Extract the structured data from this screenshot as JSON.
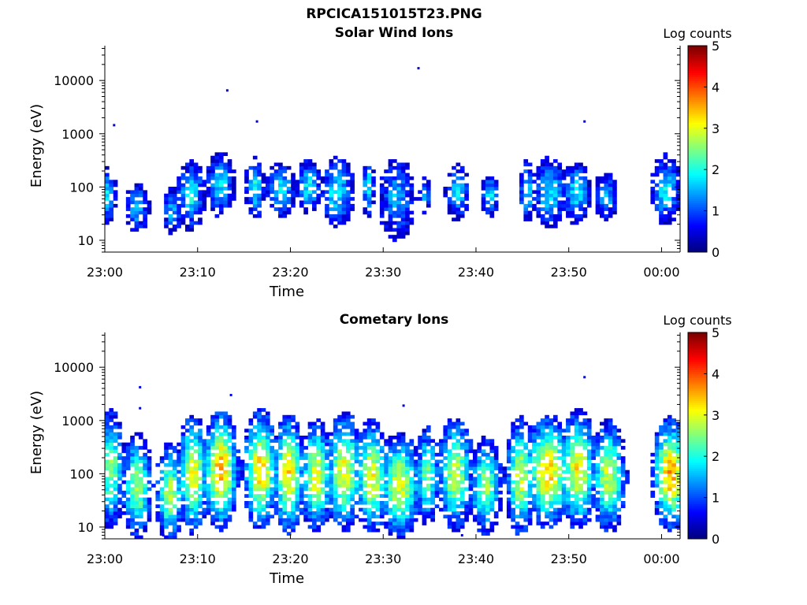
{
  "figure": {
    "title": "RPCICA151015T23.PNG"
  },
  "chart_data": [
    {
      "type": "heatmap",
      "title": "Solar Wind Ions",
      "xlabel": "Time",
      "ylabel": "Energy (eV)",
      "x_ticks": [
        "23:00",
        "23:10",
        "23:20",
        "23:30",
        "23:40",
        "23:50",
        "00:00"
      ],
      "xlim": [
        "23:00",
        "00:02"
      ],
      "y_scale": "log",
      "y_ticks": [
        10,
        100,
        1000,
        10000
      ],
      "ylim": [
        6,
        45000
      ],
      "colorbar": {
        "label": "Log counts",
        "range": [
          0,
          5
        ],
        "ticks": [
          0,
          1,
          2,
          3,
          4,
          5
        ],
        "colormap": "jet"
      },
      "bursts": [
        {
          "t": 0.2,
          "w": 0.8,
          "e": 70,
          "l": 1.8,
          "s": 0.4
        },
        {
          "t": 3.5,
          "w": 1.0,
          "e": 40,
          "l": 1.6,
          "s": 0.35
        },
        {
          "t": 7.3,
          "w": 0.8,
          "e": 35,
          "l": 1.5,
          "s": 0.35
        },
        {
          "t": 9.3,
          "w": 1.2,
          "e": 70,
          "l": 1.9,
          "s": 0.5
        },
        {
          "t": 12.5,
          "w": 1.3,
          "e": 110,
          "l": 1.7,
          "s": 0.45
        },
        {
          "t": 16.2,
          "w": 0.8,
          "e": 100,
          "l": 1.9,
          "s": 0.45
        },
        {
          "t": 19.0,
          "w": 1.2,
          "e": 90,
          "l": 1.8,
          "s": 0.4
        },
        {
          "t": 22.0,
          "w": 1.0,
          "e": 100,
          "l": 1.9,
          "s": 0.4
        },
        {
          "t": 25.0,
          "w": 1.5,
          "e": 80,
          "l": 1.8,
          "s": 0.5
        },
        {
          "t": 28.4,
          "w": 0.5,
          "e": 100,
          "l": 1.9,
          "s": 0.45
        },
        {
          "t": 31.5,
          "w": 1.5,
          "e": 60,
          "l": 1.5,
          "s": 0.6
        },
        {
          "t": 34.5,
          "w": 0.5,
          "e": 70,
          "l": 1.5,
          "s": 0.25
        },
        {
          "t": 38.0,
          "w": 1.0,
          "e": 80,
          "l": 1.7,
          "s": 0.4
        },
        {
          "t": 41.5,
          "w": 0.8,
          "e": 70,
          "l": 1.8,
          "s": 0.3
        },
        {
          "t": 45.5,
          "w": 0.7,
          "e": 80,
          "l": 1.7,
          "s": 0.45
        },
        {
          "t": 48.0,
          "w": 1.4,
          "e": 80,
          "l": 1.8,
          "s": 0.5
        },
        {
          "t": 50.8,
          "w": 1.2,
          "e": 80,
          "l": 1.8,
          "s": 0.45
        },
        {
          "t": 54.0,
          "w": 1.0,
          "e": 70,
          "l": 1.6,
          "s": 0.35
        },
        {
          "t": 60.5,
          "w": 1.3,
          "e": 90,
          "l": 1.8,
          "s": 0.5
        }
      ],
      "outliers": [
        {
          "t": 13.2,
          "e": 6500
        },
        {
          "t": 16.4,
          "e": 1700
        },
        {
          "t": 33.8,
          "e": 17000
        },
        {
          "t": 51.7,
          "e": 1700
        },
        {
          "t": 1.0,
          "e": 1450
        }
      ]
    },
    {
      "type": "heatmap",
      "title": "Cometary Ions",
      "xlabel": "Time",
      "ylabel": "Energy (eV)",
      "x_ticks": [
        "23:00",
        "23:10",
        "23:20",
        "23:30",
        "23:40",
        "23:50",
        "00:00"
      ],
      "xlim": [
        "23:00",
        "00:02"
      ],
      "y_scale": "log",
      "y_ticks": [
        10,
        100,
        1000,
        10000
      ],
      "ylim": [
        6,
        45000
      ],
      "colorbar": {
        "label": "Log counts",
        "range": [
          0,
          5
        ],
        "ticks": [
          0,
          1,
          2,
          3,
          4,
          5
        ],
        "colormap": "jet"
      },
      "bursts": [
        {
          "t": 0.6,
          "w": 1.2,
          "e": 120,
          "l": 2.6,
          "s": 0.85
        },
        {
          "t": 3.5,
          "w": 1.3,
          "e": 60,
          "l": 2.7,
          "s": 0.75
        },
        {
          "t": 7.0,
          "w": 1.2,
          "e": 45,
          "l": 2.8,
          "s": 0.7
        },
        {
          "t": 9.5,
          "w": 1.3,
          "e": 100,
          "l": 3.2,
          "s": 0.85
        },
        {
          "t": 12.5,
          "w": 1.5,
          "e": 120,
          "l": 3.6,
          "s": 0.85
        },
        {
          "t": 16.8,
          "w": 1.5,
          "e": 120,
          "l": 3.4,
          "s": 0.85
        },
        {
          "t": 19.8,
          "w": 1.4,
          "e": 100,
          "l": 3.3,
          "s": 0.85
        },
        {
          "t": 22.8,
          "w": 1.4,
          "e": 90,
          "l": 3.1,
          "s": 0.8
        },
        {
          "t": 25.8,
          "w": 1.6,
          "e": 110,
          "l": 3.1,
          "s": 0.85
        },
        {
          "t": 28.8,
          "w": 1.5,
          "e": 90,
          "l": 3.1,
          "s": 0.8
        },
        {
          "t": 31.8,
          "w": 1.8,
          "e": 60,
          "l": 3.0,
          "s": 0.75
        },
        {
          "t": 34.8,
          "w": 1.0,
          "e": 90,
          "l": 2.6,
          "s": 0.7
        },
        {
          "t": 37.8,
          "w": 1.5,
          "e": 100,
          "l": 2.9,
          "s": 0.8
        },
        {
          "t": 41.0,
          "w": 1.4,
          "e": 60,
          "l": 2.6,
          "s": 0.7
        },
        {
          "t": 44.8,
          "w": 1.3,
          "e": 90,
          "l": 2.9,
          "s": 0.85
        },
        {
          "t": 47.8,
          "w": 2.0,
          "e": 110,
          "l": 3.4,
          "s": 0.8
        },
        {
          "t": 51.0,
          "w": 1.6,
          "e": 120,
          "l": 3.2,
          "s": 0.85
        },
        {
          "t": 54.3,
          "w": 1.5,
          "e": 90,
          "l": 2.9,
          "s": 0.8
        },
        {
          "t": 61.0,
          "w": 1.6,
          "e": 100,
          "l": 3.6,
          "s": 0.8
        }
      ],
      "outliers": [
        {
          "t": 3.8,
          "e": 4200
        },
        {
          "t": 3.8,
          "e": 1700
        },
        {
          "t": 13.6,
          "e": 3000
        },
        {
          "t": 32.2,
          "e": 1900
        },
        {
          "t": 51.7,
          "e": 6500
        },
        {
          "t": 38.5,
          "e": 7
        },
        {
          "t": 6.3,
          "e": 7
        }
      ]
    }
  ]
}
